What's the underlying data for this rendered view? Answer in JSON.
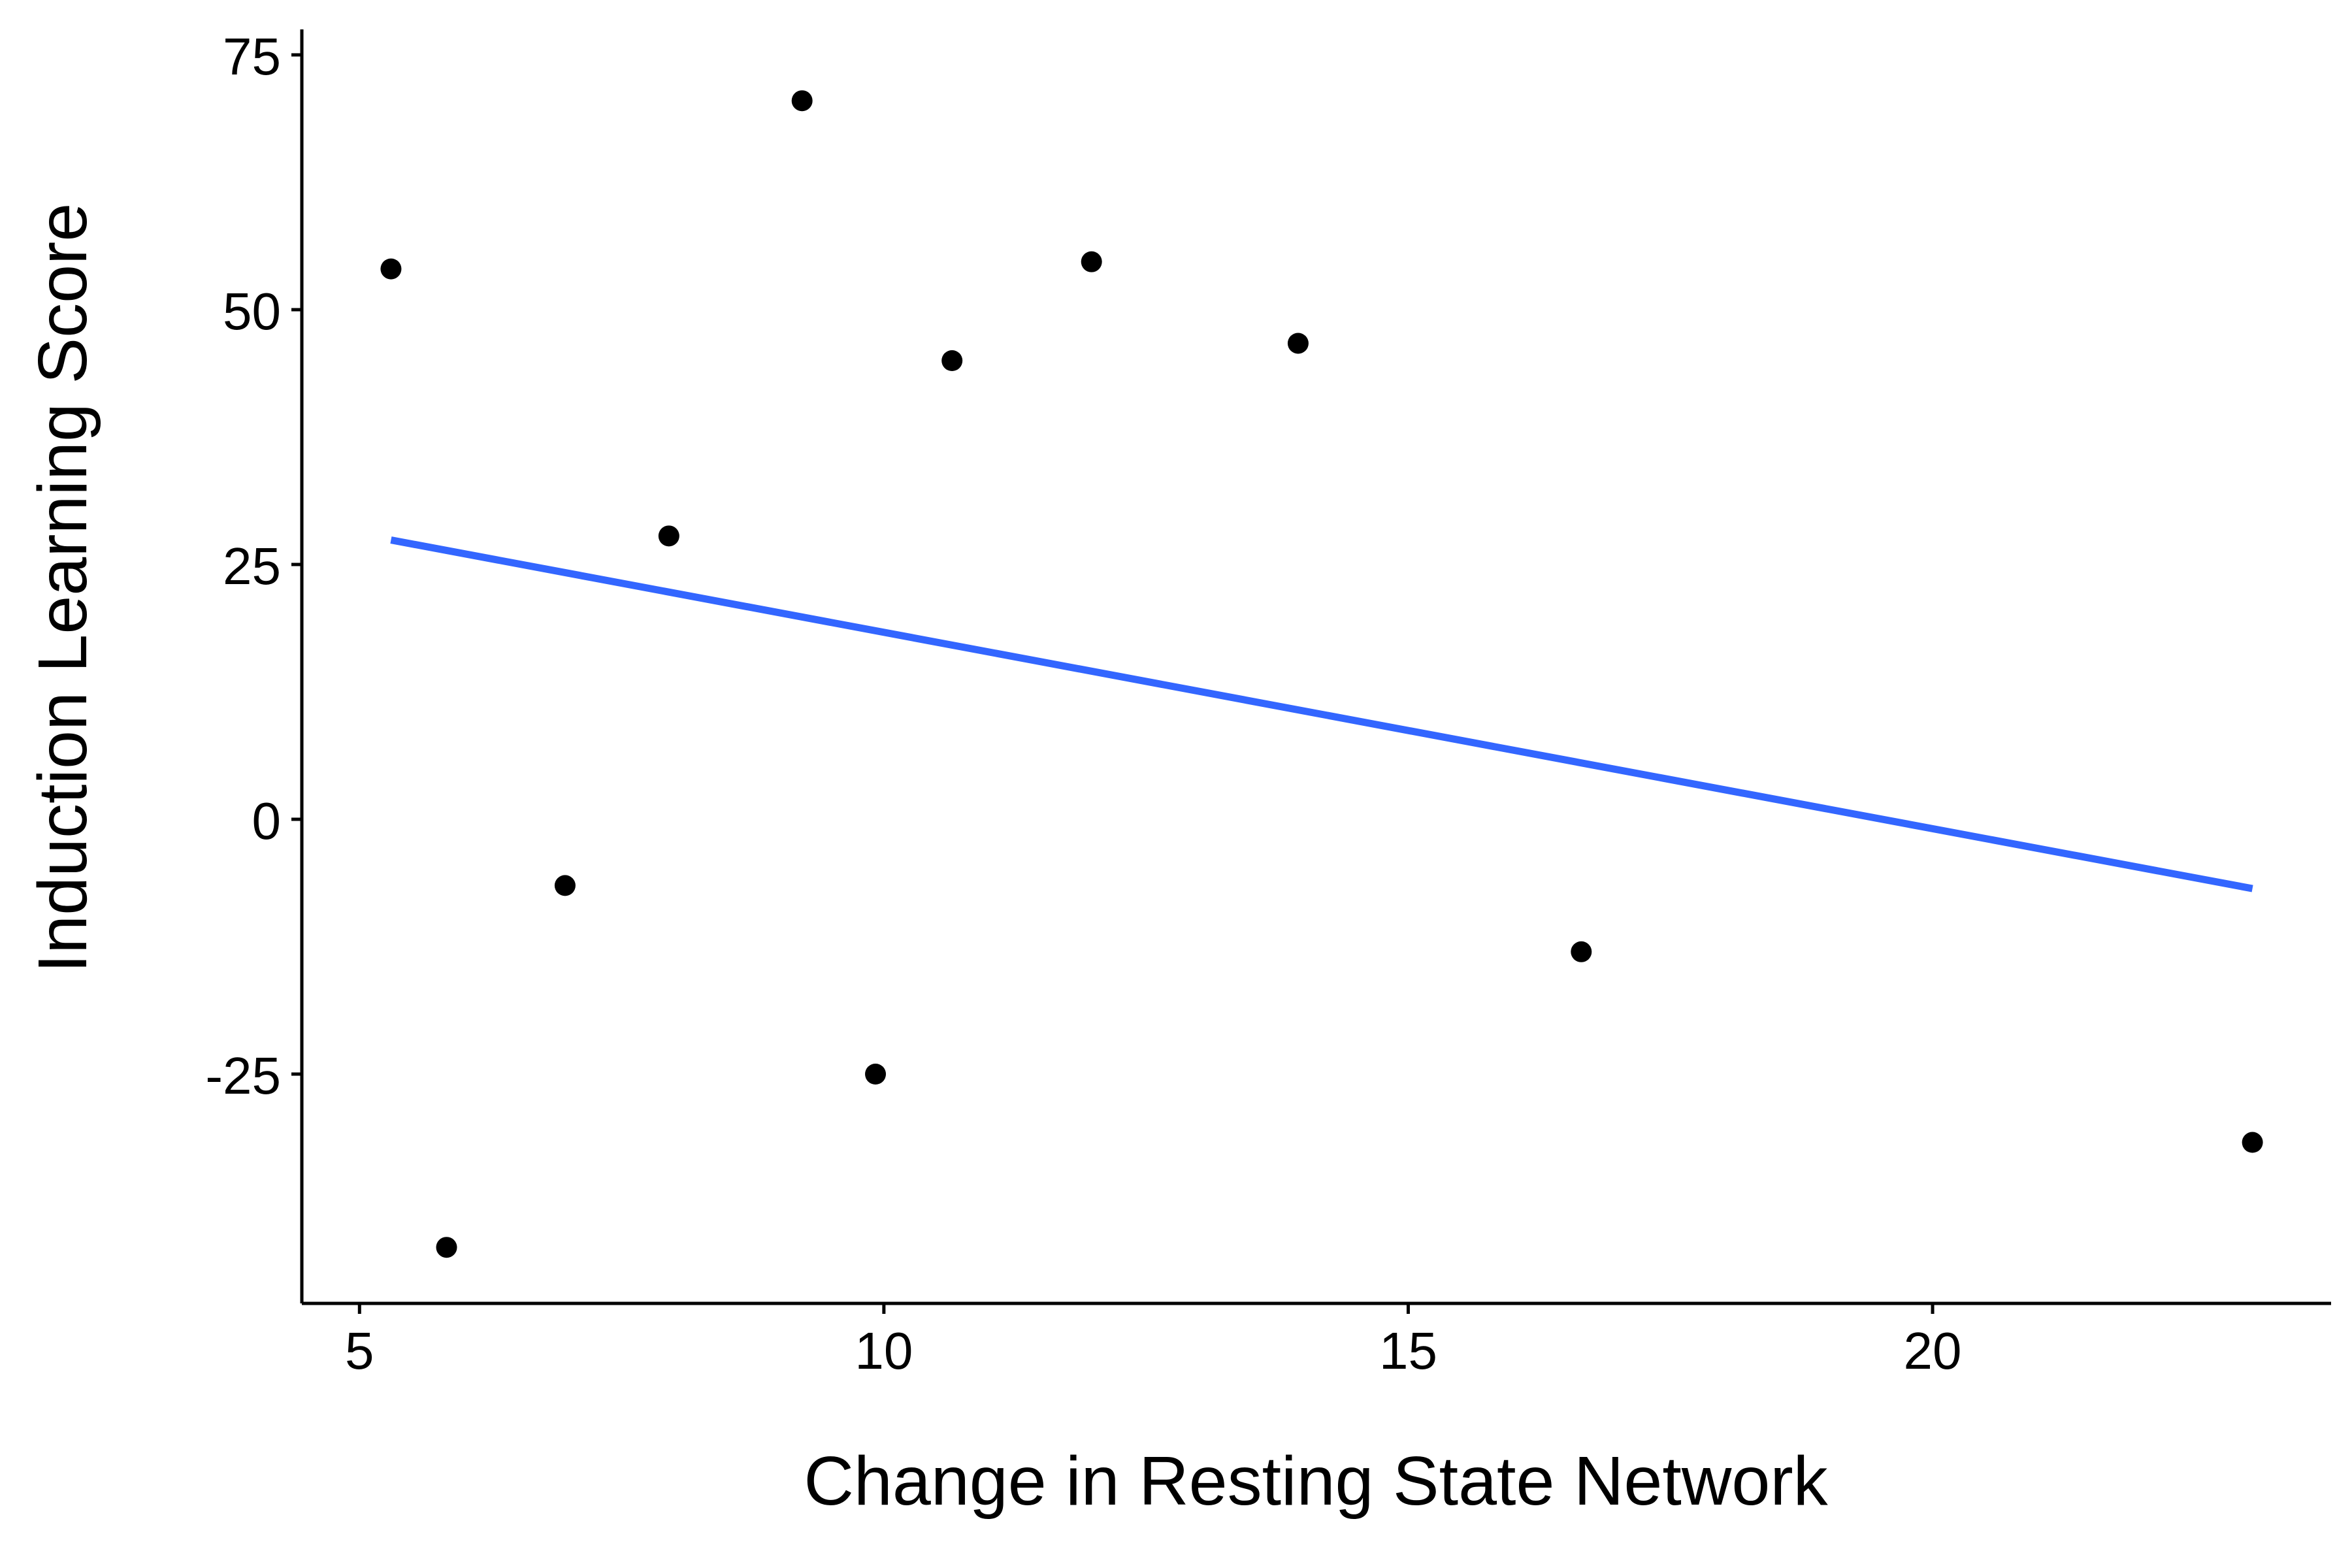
{
  "chart_data": {
    "type": "scatter",
    "xlabel": "Change in Resting State Network",
    "ylabel": "Induction Learning Score",
    "xlim": [
      4.45,
      23.8
    ],
    "ylim": [
      -47.5,
      77.5
    ],
    "x_ticks": [
      5,
      10,
      15,
      20
    ],
    "x_tick_labels": [
      "5",
      "10",
      "15",
      "20"
    ],
    "y_ticks": [
      -25,
      0,
      25,
      50,
      75
    ],
    "y_tick_labels": [
      "-25",
      "0",
      "25",
      "50",
      "75"
    ],
    "grid": false,
    "legend": "none",
    "points": [
      {
        "x": 5.3,
        "y": 54.0
      },
      {
        "x": 5.83,
        "y": -42.0
      },
      {
        "x": 6.96,
        "y": -6.5
      },
      {
        "x": 7.95,
        "y": 27.8
      },
      {
        "x": 9.22,
        "y": 70.5
      },
      {
        "x": 9.92,
        "y": -25.0
      },
      {
        "x": 10.65,
        "y": 45.0
      },
      {
        "x": 11.98,
        "y": 54.7
      },
      {
        "x": 13.95,
        "y": 46.7
      },
      {
        "x": 16.65,
        "y": -13.0
      },
      {
        "x": 23.05,
        "y": -31.7
      }
    ],
    "trend_line": {
      "x": [
        5.3,
        23.05
      ],
      "y": [
        27.4,
        -6.8
      ]
    },
    "colors": {
      "points": "#000000",
      "trend_line": "#3366FF",
      "axis": "#000000"
    }
  }
}
